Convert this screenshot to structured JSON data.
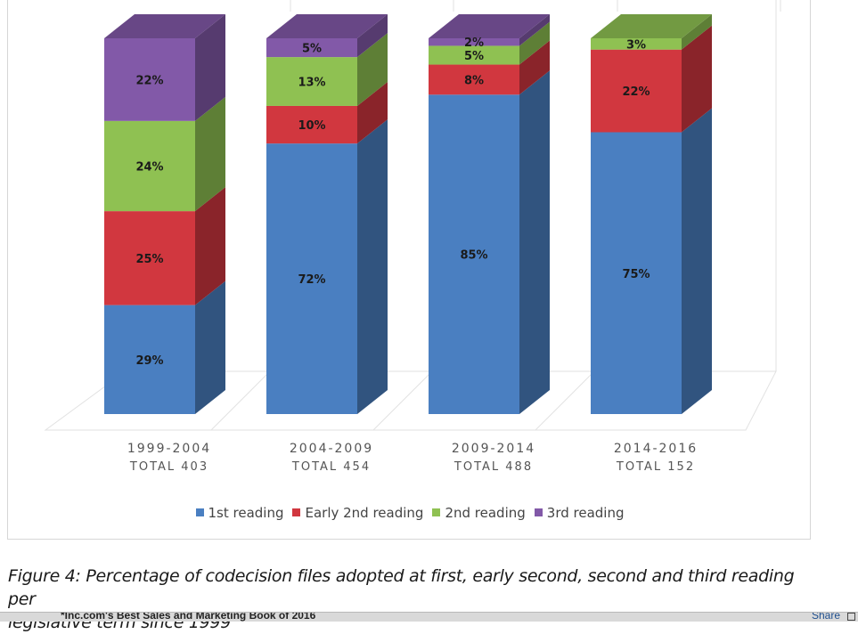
{
  "chart_data": {
    "type": "bar",
    "stacked": true,
    "categories": [
      "1999-2004",
      "2004-2009",
      "2009-2014",
      "2014-2016"
    ],
    "category_totals": [
      "TOTAL 403",
      "TOTAL 454",
      "TOTAL 488",
      "TOTAL 152"
    ],
    "series": [
      {
        "name": "1st reading",
        "color": "#4a7fc1",
        "values": [
          29,
          72,
          85,
          75
        ]
      },
      {
        "name": "Early 2nd reading",
        "color": "#d1373f",
        "values": [
          25,
          10,
          8,
          22
        ]
      },
      {
        "name": "2nd reading",
        "color": "#8fc152",
        "values": [
          24,
          13,
          5,
          3
        ]
      },
      {
        "name": "3rd reading",
        "color": "#8259a8",
        "values": [
          22,
          5,
          2,
          0
        ]
      }
    ],
    "data_labels": [
      [
        "29%",
        "72%",
        "85%",
        "75%"
      ],
      [
        "25%",
        "10%",
        "8%",
        "22%"
      ],
      [
        "24%",
        "13%",
        "5%",
        "3%"
      ],
      [
        "22%",
        "5%",
        "2%",
        ""
      ]
    ],
    "ylim": [
      0,
      100
    ],
    "legend_position": "bottom",
    "style": "3d"
  },
  "caption": {
    "line1": "Figure 4: Percentage of codecision files adopted at first, early second, second and third reading per",
    "line2": "legislative term since 1999"
  },
  "bottom_bar": {
    "text": "*Inc.com's Best Sales and Marketing Book of 2016",
    "share_label": "Share",
    "share_icon": "share-icon"
  }
}
